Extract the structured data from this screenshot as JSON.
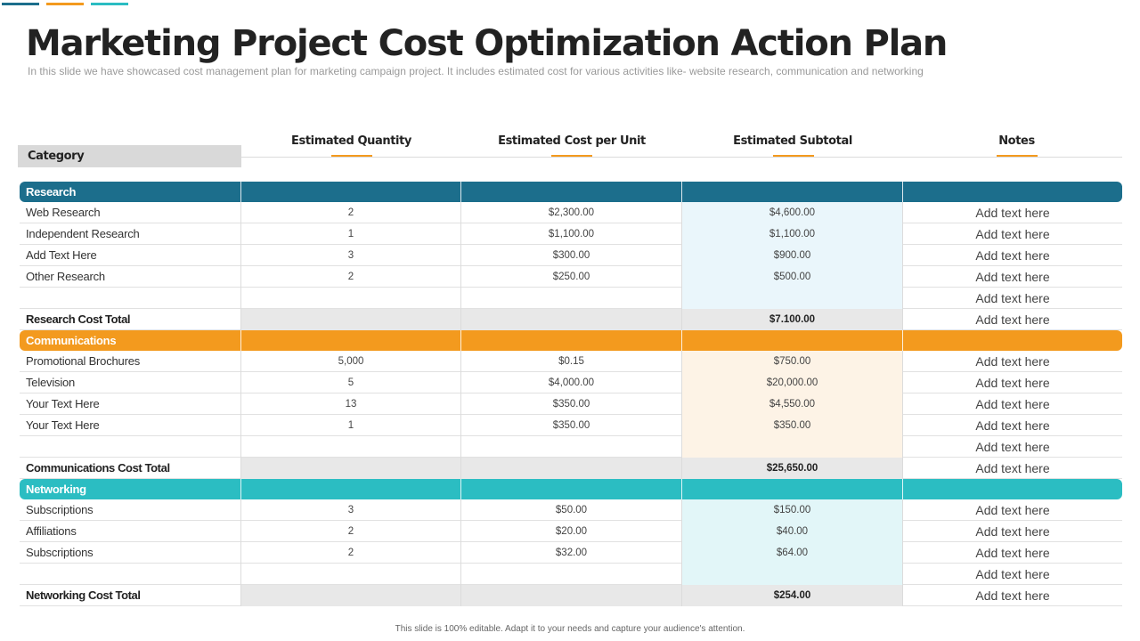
{
  "title": "Marketing Project Cost Optimization Action Plan",
  "subtitle": "In this slide we have showcased cost management plan for marketing campaign project. It includes estimated cost for various activities like- website research, communication and networking",
  "colors": {
    "research": "#1c6e8c",
    "communications": "#f39a1e",
    "networking": "#2bbdc2",
    "research_subtotal_bg": "#eaf6fb",
    "communications_subtotal_bg": "#fdf3e6",
    "networking_subtotal_bg": "#e2f6f8"
  },
  "headers": {
    "category": "Category",
    "quantity": "Estimated Quantity",
    "cost_per_unit": "Estimated Cost per Unit",
    "subtotal": "Estimated Subtotal",
    "notes": "Notes"
  },
  "sections": [
    {
      "name": "Research",
      "color_key": "research",
      "rows": [
        {
          "category": "Web Research",
          "quantity": "2",
          "unit_cost": "$2,300.00",
          "subtotal": "$4,600.00",
          "notes": "Add text here"
        },
        {
          "category": "Independent Research",
          "quantity": "1",
          "unit_cost": "$1,100.00",
          "subtotal": "$1,100.00",
          "notes": "Add text here"
        },
        {
          "category": "Add Text Here",
          "quantity": "3",
          "unit_cost": "$300.00",
          "subtotal": "$900.00",
          "notes": "Add text here"
        },
        {
          "category": "Other Research",
          "quantity": "2",
          "unit_cost": "$250.00",
          "subtotal": "$500.00",
          "notes": "Add text here"
        },
        {
          "category": "",
          "quantity": "",
          "unit_cost": "",
          "subtotal": "",
          "notes": "Add text here"
        }
      ],
      "total": {
        "label": "Research Cost Total",
        "subtotal": "$7.100.00",
        "notes": "Add text here"
      }
    },
    {
      "name": "Communications",
      "color_key": "communications",
      "rows": [
        {
          "category": "Promotional Brochures",
          "quantity": "5,000",
          "unit_cost": "$0.15",
          "subtotal": "$750.00",
          "notes": "Add text here"
        },
        {
          "category": "Television",
          "quantity": "5",
          "unit_cost": "$4,000.00",
          "subtotal": "$20,000.00",
          "notes": "Add text here"
        },
        {
          "category": "Your Text Here",
          "quantity": "13",
          "unit_cost": "$350.00",
          "subtotal": "$4,550.00",
          "notes": "Add text here"
        },
        {
          "category": "Your Text Here",
          "quantity": "1",
          "unit_cost": "$350.00",
          "subtotal": "$350.00",
          "notes": "Add text here"
        },
        {
          "category": "",
          "quantity": "",
          "unit_cost": "",
          "subtotal": "",
          "notes": "Add text here"
        }
      ],
      "total": {
        "label": "Communications Cost Total",
        "subtotal": "$25,650.00",
        "notes": "Add text here"
      }
    },
    {
      "name": "Networking",
      "color_key": "networking",
      "rows": [
        {
          "category": "Subscriptions",
          "quantity": "3",
          "unit_cost": "$50.00",
          "subtotal": "$150.00",
          "notes": "Add text here"
        },
        {
          "category": "Affiliations",
          "quantity": "2",
          "unit_cost": "$20.00",
          "subtotal": "$40.00",
          "notes": "Add text here"
        },
        {
          "category": "Subscriptions",
          "quantity": "2",
          "unit_cost": "$32.00",
          "subtotal": "$64.00",
          "notes": "Add text here"
        },
        {
          "category": "",
          "quantity": "",
          "unit_cost": "",
          "subtotal": "",
          "notes": "Add text here"
        }
      ],
      "total": {
        "label": "Networking Cost Total",
        "subtotal": "$254.00",
        "notes": "Add text here"
      }
    }
  ],
  "footer": "This slide is 100% editable. Adapt it to your needs and capture your audience's attention."
}
